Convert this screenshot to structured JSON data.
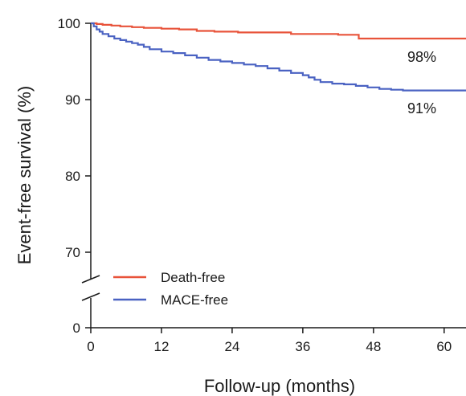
{
  "chart_data": {
    "type": "line",
    "xlabel": "Follow-up (months)",
    "ylabel": "Event-free survival  (%)",
    "xlim": [
      0,
      68
    ],
    "ylim": [
      0,
      100
    ],
    "y_axis_break": true,
    "x_ticks": [
      0,
      12,
      24,
      36,
      48,
      60
    ],
    "x_tick_labels": [
      "0",
      "12",
      "24",
      "36",
      "48",
      "60"
    ],
    "y_ticks": [
      0,
      70,
      80,
      90,
      100
    ],
    "y_tick_labels": [
      "0",
      "70",
      "80",
      "90",
      "100"
    ],
    "legend_position": "bottom-left",
    "colors": {
      "death_free": "#e8533a",
      "mace_free": "#4a62c2",
      "axis": "#1a1a1a"
    },
    "series": [
      {
        "name": "Death-free",
        "step": true,
        "end_label": "98%",
        "x": [
          0,
          1,
          2,
          3.5,
          5,
          7,
          9,
          12,
          15,
          18,
          21,
          25,
          30,
          34,
          38,
          42,
          45,
          45.5,
          50,
          55,
          60,
          68
        ],
        "y": [
          100,
          99.9,
          99.8,
          99.7,
          99.6,
          99.5,
          99.4,
          99.3,
          99.2,
          99.0,
          98.9,
          98.8,
          98.8,
          98.6,
          98.6,
          98.5,
          98.5,
          98.0,
          98.0,
          98.0,
          98.0,
          98.0
        ]
      },
      {
        "name": "MACE-free",
        "step": true,
        "end_label": "91%",
        "x": [
          0,
          0.5,
          1,
          1.5,
          2,
          3,
          4,
          5,
          6,
          7,
          8,
          9,
          10,
          12,
          14,
          16,
          18,
          20,
          22,
          24,
          26,
          28,
          30,
          32,
          34,
          36,
          37,
          38,
          39,
          41,
          43,
          45,
          47,
          49,
          51,
          53,
          68
        ],
        "y": [
          100,
          99.6,
          99.2,
          98.9,
          98.6,
          98.3,
          98.0,
          97.8,
          97.6,
          97.4,
          97.2,
          96.9,
          96.6,
          96.3,
          96.1,
          95.8,
          95.5,
          95.2,
          95.0,
          94.8,
          94.6,
          94.4,
          94.1,
          93.8,
          93.5,
          93.2,
          92.9,
          92.6,
          92.3,
          92.1,
          92.0,
          91.8,
          91.6,
          91.4,
          91.3,
          91.2,
          91.2
        ]
      }
    ]
  }
}
